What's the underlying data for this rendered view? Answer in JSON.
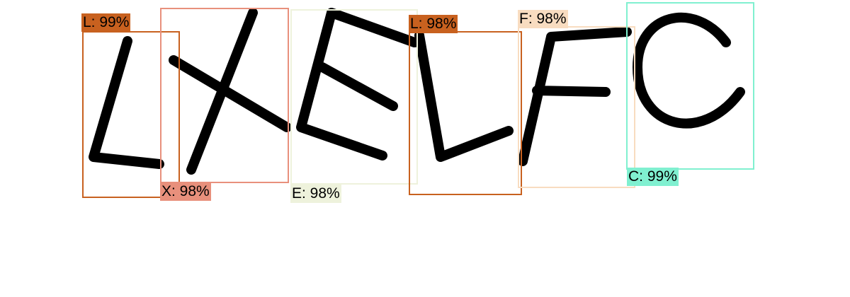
{
  "detections": [
    {
      "letter": "L",
      "label": "L: 99%",
      "confidence": 0.99,
      "color": "#c8611f"
    },
    {
      "letter": "X",
      "label": "X: 98%",
      "confidence": 0.98,
      "color": "#e8907c"
    },
    {
      "letter": "E",
      "label": "E: 98%",
      "confidence": 0.98,
      "color": "#eef2dc"
    },
    {
      "letter": "L",
      "label": "L: 98%",
      "confidence": 0.98,
      "color": "#c8611f"
    },
    {
      "letter": "F",
      "label": "F: 98%",
      "confidence": 0.98,
      "color": "#f8dcc0"
    },
    {
      "letter": "C",
      "label": "C: 99%",
      "confidence": 0.99,
      "color": "#80f0d0"
    }
  ]
}
